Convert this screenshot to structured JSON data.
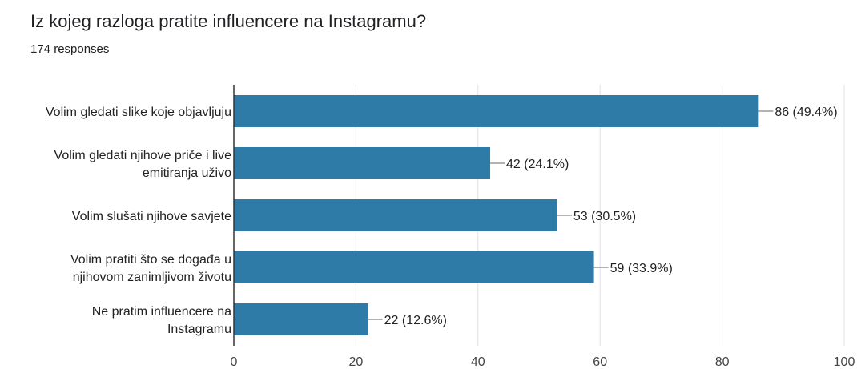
{
  "header": {
    "title": "Iz kojeg razloga pratite influencere na Instagramu?",
    "responses": "174 responses"
  },
  "colors": {
    "bar": "#2e7ba7",
    "grid": "#e0e0e0",
    "axis": "#333333"
  },
  "chart_data": {
    "type": "bar",
    "orientation": "horizontal",
    "title": "Iz kojeg razloga pratite influencere na Instagramu?",
    "categories": [
      "Volim gledati slike koje objavljuju",
      "Volim gledati njihove priče i live emitiranja uživo",
      "Volim slušati njihove savjete",
      "Volim pratiti što se događa u njihovom zanimljivom životu",
      "Ne pratim influencere na Instagramu"
    ],
    "category_lines": [
      [
        "Volim gledati slike koje objavljuju"
      ],
      [
        "Volim gledati njihove priče i live",
        "emitiranja uživo"
      ],
      [
        "Volim slušati njihove savjete"
      ],
      [
        "Volim pratiti što se događa u",
        "njihovom zanimljivom životu"
      ],
      [
        "Ne pratim influencere na",
        "Instagramu"
      ]
    ],
    "values": [
      86,
      42,
      53,
      59,
      22
    ],
    "value_labels": [
      "86 (49.4%)",
      "42 (24.1%)",
      "53 (30.5%)",
      "59 (33.9%)",
      "22 (12.6%)"
    ],
    "xlim": [
      0,
      100
    ],
    "xticks": [
      0,
      20,
      40,
      60,
      80,
      100
    ],
    "grid": true
  }
}
